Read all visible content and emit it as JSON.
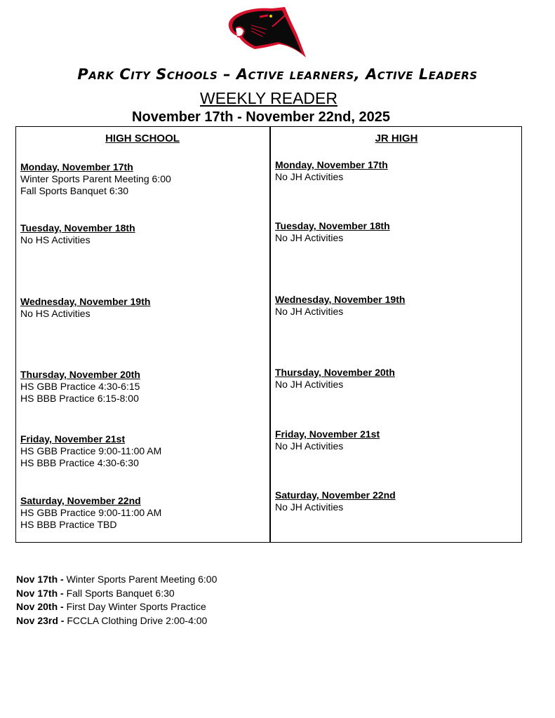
{
  "header": {
    "logo_alt": "panther logo",
    "motto": "Park City Schools – Active learners, Active Leaders",
    "title": "WEEKLY READER",
    "date_range": "November 17th - November 22nd, 2025"
  },
  "high_school": {
    "heading": "HIGH SCHOOL",
    "days": [
      {
        "day": "Monday, November 17th",
        "items": [
          "Winter Sports Parent Meeting 6:00",
          "Fall Sports Banquet 6:30"
        ]
      },
      {
        "day": "Tuesday, November 18th",
        "items": [
          "No HS Activities"
        ]
      },
      {
        "day": "Wednesday, November 19th",
        "items": [
          "No HS Activities"
        ]
      },
      {
        "day": "Thursday, November 20th",
        "items": [
          "HS GBB Practice 4:30-6:15",
          "HS BBB Practice 6:15-8:00"
        ]
      },
      {
        "day": "Friday, November 21st",
        "items": [
          "HS GBB Practice 9:00-11:00 AM",
          "HS BBB Practice 4:30-6:30"
        ]
      },
      {
        "day": "Saturday, November 22nd",
        "items": [
          "HS GBB Practice 9:00-11:00 AM",
          "HS BBB Practice TBD"
        ]
      }
    ]
  },
  "jr_high": {
    "heading": "JR HIGH",
    "days": [
      {
        "day": "Monday, November 17th",
        "items": [
          "No JH Activities"
        ]
      },
      {
        "day": "Tuesday, November 18th",
        "items": [
          "No JH Activities"
        ]
      },
      {
        "day": "Wednesday, November 19th",
        "items": [
          "No JH Activities"
        ]
      },
      {
        "day": "Thursday, November 20th",
        "items": [
          "No JH Activities"
        ]
      },
      {
        "day": "Friday, November 21st",
        "items": [
          "No JH Activities"
        ]
      },
      {
        "day": "Saturday, November 22nd",
        "items": [
          "No JH Activities"
        ]
      }
    ]
  },
  "notes": [
    {
      "date": "Nov 17th -",
      "text": " Winter Sports Parent Meeting 6:00"
    },
    {
      "date": "Nov 17th -",
      "text": " Fall Sports Banquet 6:30"
    },
    {
      "date": "Nov 20th -",
      "text": " First Day Winter Sports Practice"
    },
    {
      "date": "Nov 23rd -",
      "text": " FCCLA Clothing Drive 2:00-4:00"
    }
  ],
  "colors": {
    "logo_red": "#d4102a",
    "logo_black": "#0a0a0a"
  }
}
